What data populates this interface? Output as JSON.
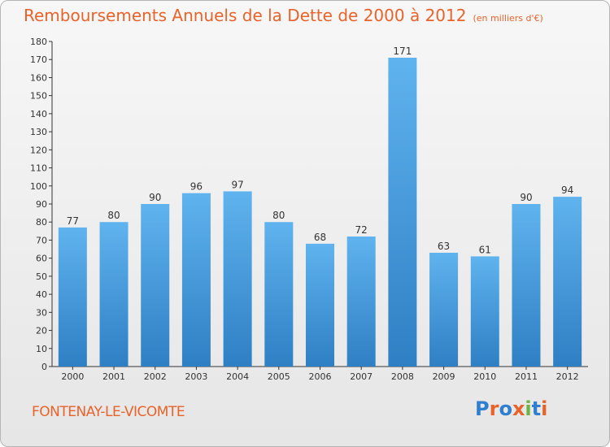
{
  "header": {
    "title": "Remboursements Annuels de la Dette de 2000 à 2012",
    "unit": "(en milliers d'€)"
  },
  "footer": {
    "commune": "FONTENAY-LE-VICOMTE",
    "brand": "Proxiti",
    "brand_colors": [
      "#2f7fd1",
      "#e8632a",
      "#2f7fd1",
      "#e8632a",
      "#6db33f",
      "#2f7fd1",
      "#e8632a"
    ]
  },
  "colors": {
    "bar": "#4da3e6",
    "bar_dark": "#2f7fc4",
    "text": "#e8632a"
  },
  "chart_data": {
    "type": "bar",
    "categories": [
      "2000",
      "2001",
      "2002",
      "2003",
      "2004",
      "2005",
      "2006",
      "2007",
      "2008",
      "2009",
      "2010",
      "2011",
      "2012"
    ],
    "values": [
      77,
      80,
      90,
      96,
      97,
      80,
      68,
      72,
      171,
      63,
      61,
      90,
      94
    ],
    "ylim": [
      0,
      180
    ],
    "yticks": [
      0,
      10,
      20,
      30,
      40,
      50,
      60,
      70,
      80,
      90,
      100,
      110,
      120,
      130,
      140,
      150,
      160,
      170,
      180
    ],
    "grid": false,
    "legend": "none"
  }
}
